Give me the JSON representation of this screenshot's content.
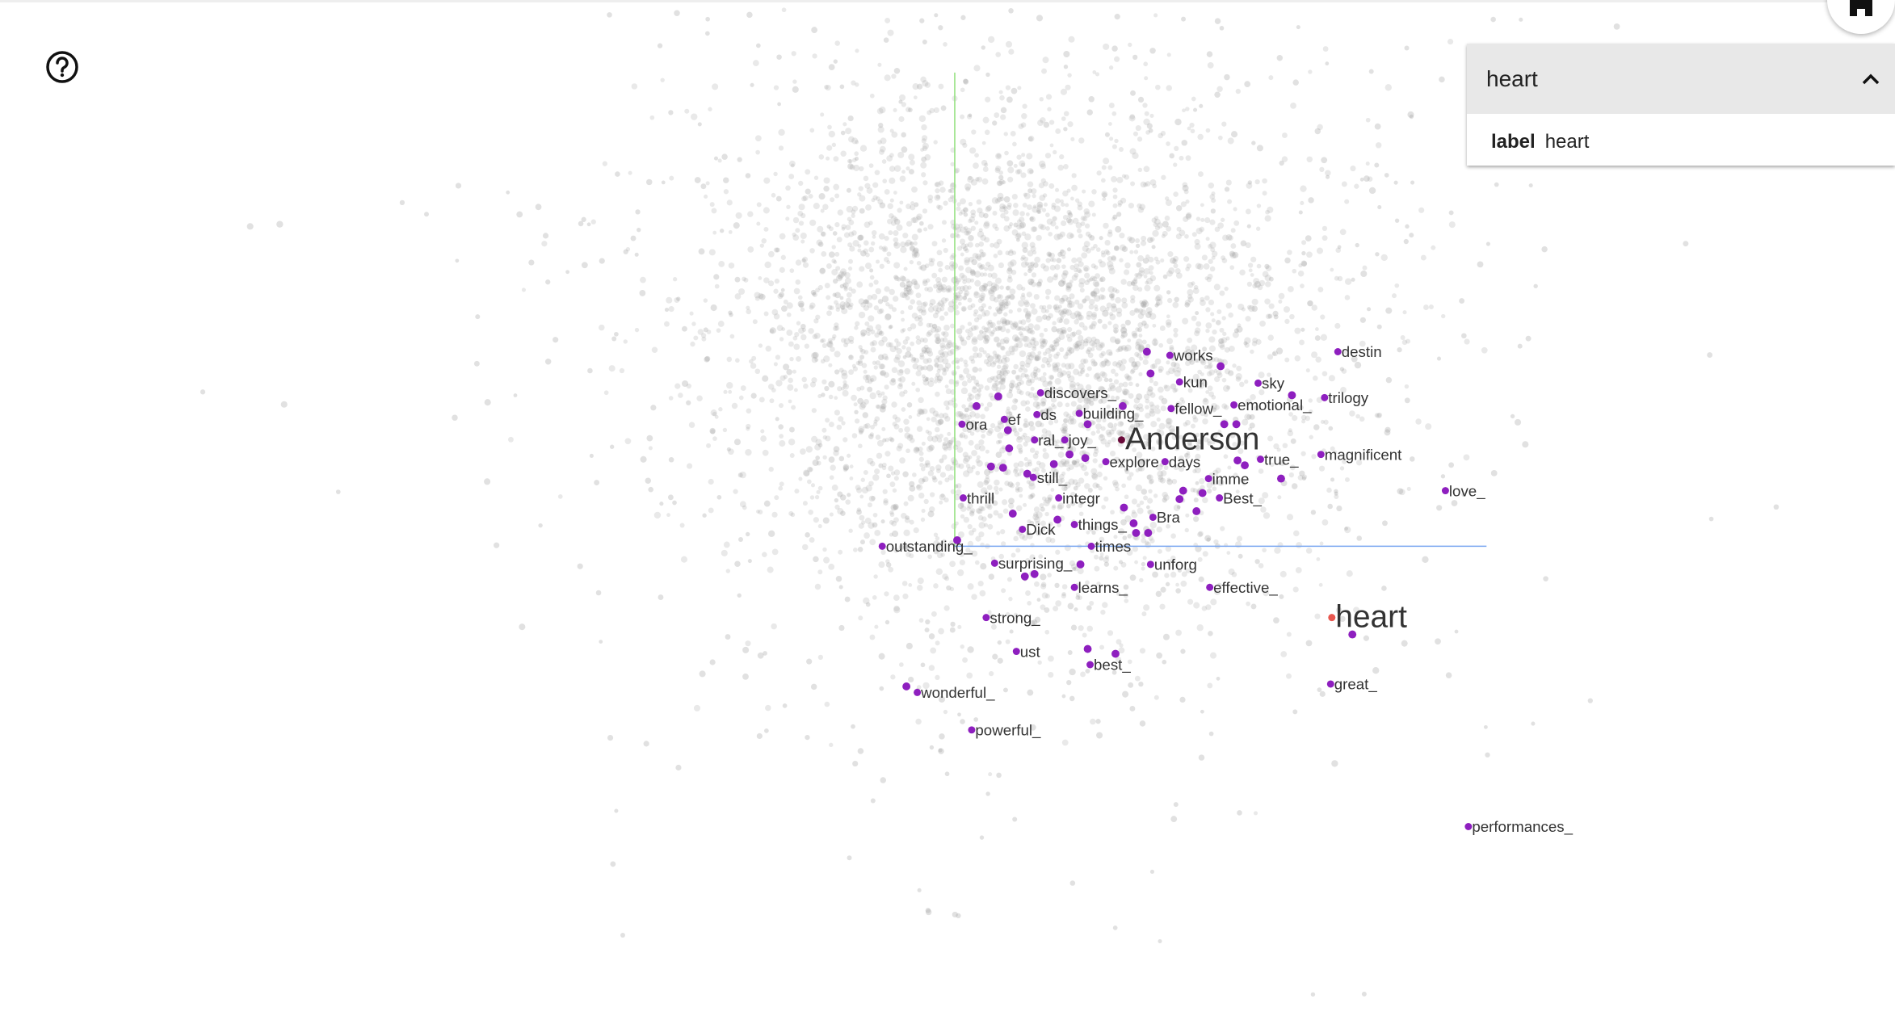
{
  "search_panel": {
    "title": "heart",
    "field_name": "label",
    "field_value": "heart"
  },
  "icons": {
    "help": "help-circle-icon",
    "home": "home-icon",
    "collapse": "chevron-up-icon"
  },
  "colors": {
    "highlight": "#8e1fbf",
    "selected": "#e8574f",
    "background_points": "#9a9a9a",
    "axis_y": "#7ddc6a",
    "axis_x": "#7aa7f0"
  },
  "labels": [
    "works",
    "destin",
    "kun",
    "sky",
    "trilogy",
    "discovers_",
    "emotional_",
    "fellow_",
    "building_",
    "ds",
    "ef",
    "ora",
    "ral_",
    "joy_",
    "Anderson",
    "true_",
    "magnificent",
    "explore",
    "days",
    "still_",
    "imme",
    "love_",
    "thrill",
    "integr",
    "Best_",
    "Bra",
    "things_",
    "Dick",
    "outstanding_",
    "times",
    "surprising_",
    "unforg",
    "learns_",
    "effective_",
    "heart",
    "strong_",
    "ust",
    "best_",
    "great_",
    "wonderful_",
    "powerful_",
    "performances_"
  ]
}
